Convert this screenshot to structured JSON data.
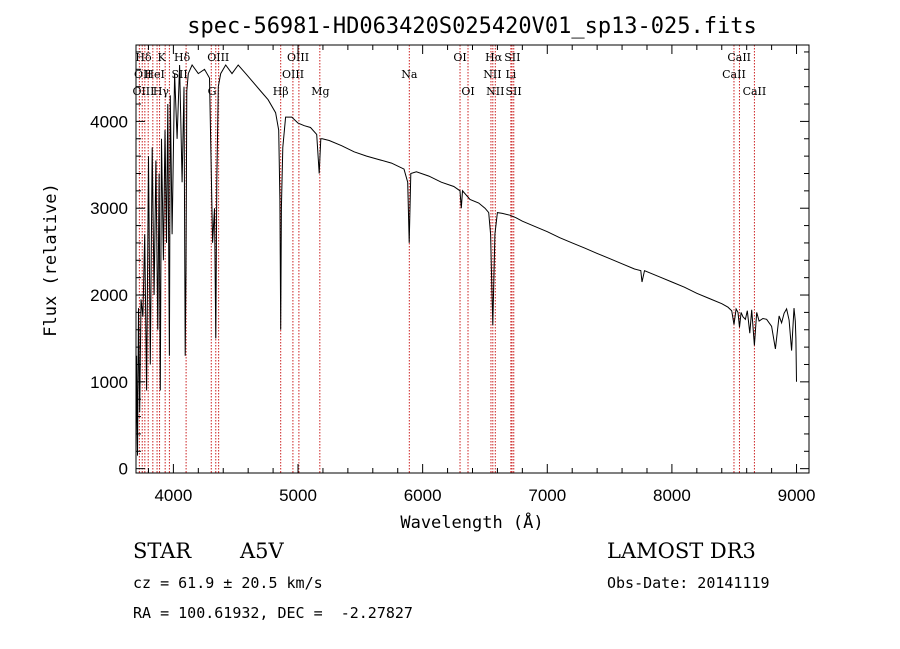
{
  "chart_data": {
    "type": "line",
    "title": "spec-56981-HD063420S025420V01_sp13-025.fits",
    "xlabel": "Wavelength (Å)",
    "ylabel": "Flux (relative)",
    "xlim": [
      3700,
      9100
    ],
    "ylim": [
      -50,
      4880
    ],
    "xticks": [
      4000,
      5000,
      6000,
      7000,
      8000,
      9000
    ],
    "yticks": [
      0,
      1000,
      2000,
      3000,
      4000
    ],
    "spectrum": {
      "x": [
        3700,
        3705,
        3712,
        3720,
        3730,
        3740,
        3755,
        3770,
        3785,
        3800,
        3815,
        3830,
        3845,
        3860,
        3875,
        3885,
        3895,
        3905,
        3920,
        3933,
        3945,
        3955,
        3962,
        3968,
        3975,
        3990,
        4010,
        4030,
        4050,
        4070,
        4085,
        4095,
        4101,
        4108,
        4120,
        4150,
        4200,
        4250,
        4290,
        4315,
        4330,
        4340,
        4348,
        4360,
        4380,
        4420,
        4470,
        4520,
        4580,
        4640,
        4700,
        4760,
        4820,
        4845,
        4855,
        4861,
        4867,
        4878,
        4900,
        4950,
        5000,
        5050,
        5100,
        5150,
        5170,
        5183,
        5195,
        5250,
        5350,
        5450,
        5550,
        5650,
        5750,
        5850,
        5880,
        5892,
        5905,
        5950,
        6050,
        6150,
        6250,
        6300,
        6310,
        6320,
        6380,
        6450,
        6500,
        6530,
        6545,
        6555,
        6560,
        6563,
        6570,
        6580,
        6600,
        6640,
        6700,
        6750,
        6800,
        6900,
        7000,
        7100,
        7200,
        7300,
        7400,
        7500,
        7600,
        7700,
        7750,
        7760,
        7780,
        7900,
        8000,
        8100,
        8200,
        8300,
        8400,
        8450,
        8480,
        8498,
        8515,
        8530,
        8542,
        8555,
        8570,
        8590,
        8605,
        8625,
        8640,
        8662,
        8680,
        8700,
        8730,
        8760,
        8800,
        8830,
        8860,
        8880,
        8900,
        8920,
        8940,
        8960,
        8980,
        8990,
        8995,
        9000
      ],
      "y": [
        200,
        1300,
        150,
        1850,
        650,
        1950,
        1750,
        2700,
        900,
        3600,
        1200,
        3700,
        2000,
        3550,
        1600,
        3400,
        900,
        3800,
        2400,
        3900,
        2600,
        4200,
        2500,
        1300,
        4300,
        2700,
        4550,
        3800,
        4650,
        3300,
        4400,
        1300,
        2300,
        4350,
        4550,
        4650,
        4550,
        4600,
        4500,
        2600,
        3000,
        1500,
        3300,
        4400,
        4550,
        4650,
        4550,
        4650,
        4550,
        4450,
        4350,
        4250,
        4100,
        3900,
        3100,
        1600,
        3000,
        3700,
        4050,
        4050,
        3980,
        3950,
        3930,
        3850,
        3400,
        3800,
        3800,
        3780,
        3720,
        3650,
        3600,
        3560,
        3520,
        3450,
        3300,
        2600,
        3400,
        3420,
        3370,
        3300,
        3250,
        3200,
        3000,
        3200,
        3100,
        3060,
        3000,
        2950,
        2700,
        2100,
        1850,
        1650,
        2100,
        2700,
        2950,
        2940,
        2920,
        2890,
        2850,
        2790,
        2730,
        2660,
        2600,
        2540,
        2480,
        2420,
        2360,
        2300,
        2280,
        2150,
        2280,
        2210,
        2150,
        2090,
        2020,
        1960,
        1900,
        1860,
        1820,
        1660,
        1840,
        1800,
        1630,
        1800,
        1750,
        1720,
        1820,
        1560,
        1830,
        1420,
        1800,
        1700,
        1730,
        1720,
        1640,
        1380,
        1760,
        1680,
        1790,
        1840,
        1710,
        1360,
        1850,
        1700,
        1500,
        1000
      ]
    },
    "line_labels": [
      {
        "text": "Hδ",
        "row": 1,
        "x": 3760
      },
      {
        "text": "K",
        "row": 1,
        "x": 3905
      },
      {
        "text": "Hδ",
        "row": 1,
        "x": 4070
      },
      {
        "text": "OIII",
        "row": 1,
        "x": 4360
      },
      {
        "text": "OIII",
        "row": 1,
        "x": 5000
      },
      {
        "text": "OI",
        "row": 1,
        "x": 6300
      },
      {
        "text": "Hα",
        "row": 1,
        "x": 6570
      },
      {
        "text": "SII",
        "row": 1,
        "x": 6720
      },
      {
        "text": "CaII",
        "row": 1,
        "x": 8540
      },
      {
        "text": "OII",
        "row": 2,
        "x": 3755
      },
      {
        "text": "HeI",
        "row": 2,
        "x": 3850
      },
      {
        "text": "SII",
        "row": 2,
        "x": 4050
      },
      {
        "text": "OIII",
        "row": 2,
        "x": 4960
      },
      {
        "text": "Na",
        "row": 2,
        "x": 5893
      },
      {
        "text": "NII",
        "row": 2,
        "x": 6560
      },
      {
        "text": "Li",
        "row": 2,
        "x": 6708
      },
      {
        "text": "CaII",
        "row": 2,
        "x": 8498
      },
      {
        "text": "OIII",
        "row": 3,
        "x": 3760
      },
      {
        "text": "Hγ",
        "row": 3,
        "x": 3900
      },
      {
        "text": "G",
        "row": 3,
        "x": 4310
      },
      {
        "text": "Hβ",
        "row": 3,
        "x": 4861
      },
      {
        "text": "Mg",
        "row": 3,
        "x": 5180
      },
      {
        "text": "OI",
        "row": 3,
        "x": 6364
      },
      {
        "text": "NII",
        "row": 3,
        "x": 6583
      },
      {
        "text": "SII",
        "row": 3,
        "x": 6730
      },
      {
        "text": "CaII",
        "row": 3,
        "x": 8662
      }
    ],
    "line_markers": [
      3727,
      3750,
      3771,
      3798,
      3835,
      3869,
      3889,
      3934,
      3968,
      4102,
      4304,
      4340,
      4363,
      4861,
      4959,
      5007,
      5175,
      5893,
      6300,
      6364,
      6548,
      6563,
      6583,
      6708,
      6717,
      6731,
      8498,
      8542,
      8662
    ]
  },
  "info": {
    "object_class": "STAR",
    "subclass": "A5V",
    "survey": "LAMOST DR3",
    "cz": "cz = 61.9 ± 20.5 km/s",
    "obs_date": "Obs-Date: 20141119",
    "coords": "RA = 100.61932, DEC =  -2.27827"
  }
}
